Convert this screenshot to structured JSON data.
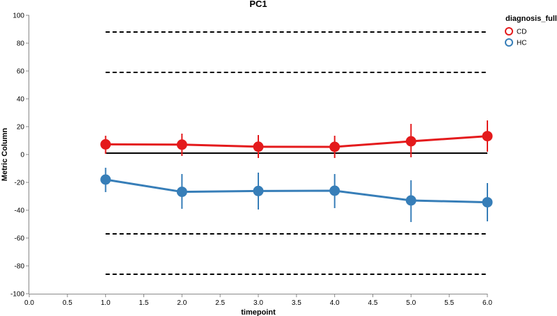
{
  "chart_data": {
    "type": "line",
    "title": "PC1",
    "xlabel": "timepoint",
    "ylabel": "Metric Column",
    "xlim": [
      0.0,
      6.0
    ],
    "ylim": [
      -100,
      100
    ],
    "x_ticks": [
      "0.0",
      "0.5",
      "1.0",
      "1.5",
      "2.0",
      "2.5",
      "3.0",
      "3.5",
      "4.0",
      "4.5",
      "5.0",
      "5.5",
      "6.0"
    ],
    "y_ticks": [
      "-100",
      "-80",
      "-60",
      "-40",
      "-20",
      "0",
      "20",
      "40",
      "60",
      "80",
      "100"
    ],
    "legend": {
      "title": "diagnosis_full",
      "position": "top-right"
    },
    "grid": false,
    "series": [
      {
        "name": "CD",
        "color": "#e41a1c",
        "x": [
          1,
          2,
          3,
          4,
          5,
          6
        ],
        "y": [
          7.3,
          7.1,
          5.6,
          5.5,
          9.5,
          13.2
        ],
        "err_low": [
          0.5,
          -1.0,
          -2.5,
          -2.5,
          -2.0,
          2.0
        ],
        "err_high": [
          13.5,
          15.0,
          14.0,
          13.5,
          22.0,
          24.5
        ]
      },
      {
        "name": "HC",
        "color": "#377eb8",
        "x": [
          1,
          2,
          3,
          4,
          5,
          6
        ],
        "y": [
          -18.0,
          -26.8,
          -26.2,
          -26.0,
          -33.0,
          -34.3
        ],
        "err_low": [
          -27.0,
          -39.0,
          -39.5,
          -38.5,
          -48.5,
          -48.0
        ],
        "err_high": [
          -9.5,
          -14.0,
          -13.0,
          -14.0,
          -18.5,
          -20.5
        ]
      }
    ],
    "reference_lines": [
      {
        "y": 88,
        "style": "dashed"
      },
      {
        "y": 59,
        "style": "dashed"
      },
      {
        "y": 1,
        "style": "solid"
      },
      {
        "y": -57,
        "style": "dashed"
      },
      {
        "y": -86,
        "style": "dashed"
      }
    ],
    "reference_x_range": [
      1,
      6
    ]
  }
}
